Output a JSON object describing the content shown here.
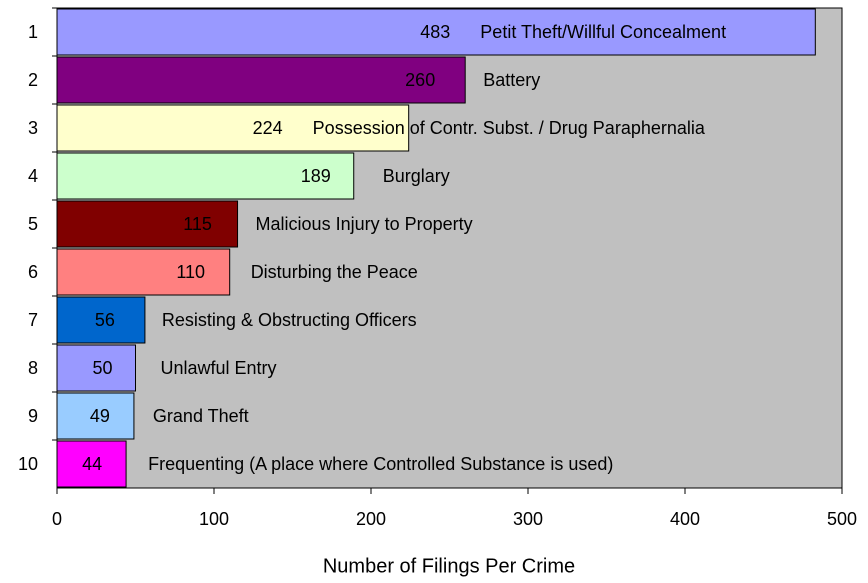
{
  "chart_data": {
    "type": "hbar",
    "xlabel": "Number of Filings Per Crime",
    "categories": [
      "1",
      "2",
      "3",
      "4",
      "5",
      "6",
      "7",
      "8",
      "9",
      "10"
    ],
    "values": [
      483,
      260,
      224,
      189,
      115,
      110,
      56,
      50,
      49,
      44
    ],
    "annotations": [
      "Petit Theft/Willful Concealment",
      "Battery",
      "Possession of Contr. Subst. / Drug Paraphernalia",
      "Burglary",
      "Malicious Injury to Property",
      "Disturbing the Peace",
      "Resisting & Obstructing Officers",
      "Unlawful Entry",
      "Grand Theft",
      "Frequenting (A place where Controlled Substance is used)"
    ],
    "colors": [
      "#9999ff",
      "#800080",
      "#ffffcc",
      "#ccffcc",
      "#800000",
      "#ff8080",
      "#0066cc",
      "#9999ff",
      "#99ccff",
      "#ff00ff"
    ],
    "xlim": [
      0,
      500
    ],
    "xticks": [
      0,
      100,
      200,
      300,
      400,
      500
    ],
    "plot_background": "#c0c0c0"
  }
}
